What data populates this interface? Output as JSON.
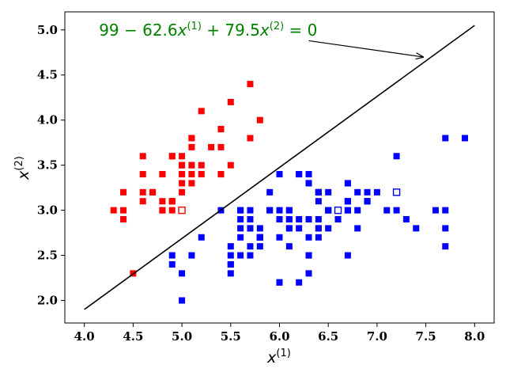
{
  "chart_data": {
    "type": "scatter",
    "xlabel": "x(1)",
    "ylabel": "x(2)",
    "xlim": [
      3.8,
      8.2
    ],
    "ylim": [
      1.75,
      5.2
    ],
    "xticks": [
      "4.0",
      "4.5",
      "5.0",
      "5.5",
      "6.0",
      "6.5",
      "7.0",
      "7.5",
      "8.0"
    ],
    "yticks": [
      "2.0",
      "2.5",
      "3.0",
      "3.5",
      "4.0",
      "4.5",
      "5.0"
    ],
    "grid": false,
    "series": [
      {
        "color": "#ff0000",
        "marker": "square",
        "points": [
          [
            5.1,
            3.5
          ],
          [
            4.9,
            3.0
          ],
          [
            4.7,
            3.2
          ],
          [
            4.6,
            3.1
          ],
          [
            5.0,
            3.6
          ],
          [
            5.4,
            3.9
          ],
          [
            4.6,
            3.4
          ],
          [
            5.0,
            3.4
          ],
          [
            4.4,
            2.9
          ],
          [
            4.9,
            3.1
          ],
          [
            5.4,
            3.7
          ],
          [
            4.8,
            3.4
          ],
          [
            4.8,
            3.0
          ],
          [
            4.3,
            3.0
          ],
          [
            5.8,
            4.0
          ],
          [
            5.7,
            4.4
          ],
          [
            5.4,
            3.9
          ],
          [
            5.1,
            3.5
          ],
          [
            5.7,
            3.8
          ],
          [
            5.1,
            3.8
          ],
          [
            5.4,
            3.4
          ],
          [
            5.1,
            3.7
          ],
          [
            4.6,
            3.6
          ],
          [
            5.1,
            3.3
          ],
          [
            4.8,
            3.4
          ],
          [
            5.0,
            3.0
          ],
          [
            5.0,
            3.4
          ],
          [
            5.2,
            3.5
          ],
          [
            5.2,
            3.4
          ],
          [
            4.7,
            3.2
          ],
          [
            4.8,
            3.1
          ],
          [
            5.4,
            3.4
          ],
          [
            5.2,
            4.1
          ],
          [
            5.5,
            4.2
          ],
          [
            4.9,
            3.1
          ],
          [
            5.0,
            3.2
          ],
          [
            5.5,
            3.5
          ],
          [
            4.9,
            3.6
          ],
          [
            4.4,
            3.0
          ],
          [
            5.1,
            3.4
          ],
          [
            5.0,
            3.5
          ],
          [
            4.5,
            2.3
          ],
          [
            4.4,
            3.2
          ],
          [
            5.0,
            3.5
          ],
          [
            5.1,
            3.8
          ],
          [
            4.8,
            3.0
          ],
          [
            5.1,
            3.8
          ],
          [
            4.6,
            3.2
          ],
          [
            5.3,
            3.7
          ],
          [
            5.0,
            3.3
          ],
          [
            4.9,
            3.6
          ],
          [
            4.9,
            3.1
          ]
        ]
      },
      {
        "color": "#0000ff",
        "marker": "square",
        "points": [
          [
            7.0,
            3.2
          ],
          [
            6.4,
            3.2
          ],
          [
            6.9,
            3.1
          ],
          [
            5.5,
            2.3
          ],
          [
            6.5,
            2.8
          ],
          [
            5.7,
            2.8
          ],
          [
            6.3,
            3.3
          ],
          [
            4.9,
            2.4
          ],
          [
            6.6,
            2.9
          ],
          [
            5.2,
            2.7
          ],
          [
            5.0,
            2.0
          ],
          [
            5.9,
            3.0
          ],
          [
            6.0,
            2.2
          ],
          [
            6.1,
            2.9
          ],
          [
            5.6,
            2.9
          ],
          [
            6.7,
            3.1
          ],
          [
            5.6,
            3.0
          ],
          [
            5.8,
            2.7
          ],
          [
            6.2,
            2.2
          ],
          [
            5.6,
            2.5
          ],
          [
            5.9,
            3.2
          ],
          [
            6.1,
            2.8
          ],
          [
            6.3,
            2.5
          ],
          [
            6.1,
            2.8
          ],
          [
            6.4,
            2.9
          ],
          [
            6.6,
            3.0
          ],
          [
            6.8,
            2.8
          ],
          [
            6.7,
            3.0
          ],
          [
            6.0,
            2.9
          ],
          [
            5.7,
            2.6
          ],
          [
            5.5,
            2.4
          ],
          [
            5.5,
            2.4
          ],
          [
            5.8,
            2.7
          ],
          [
            6.0,
            2.7
          ],
          [
            5.4,
            3.0
          ],
          [
            6.0,
            3.4
          ],
          [
            6.7,
            3.1
          ],
          [
            6.3,
            2.3
          ],
          [
            5.6,
            3.0
          ],
          [
            5.5,
            2.5
          ],
          [
            5.5,
            2.6
          ],
          [
            6.1,
            3.0
          ],
          [
            5.8,
            2.6
          ],
          [
            5.0,
            2.3
          ],
          [
            5.6,
            2.7
          ],
          [
            5.7,
            3.0
          ],
          [
            5.7,
            2.9
          ],
          [
            6.2,
            2.9
          ],
          [
            5.1,
            2.5
          ],
          [
            5.7,
            2.8
          ],
          [
            6.3,
            3.3
          ],
          [
            5.8,
            2.7
          ],
          [
            7.1,
            3.0
          ],
          [
            6.3,
            2.9
          ],
          [
            6.5,
            3.0
          ],
          [
            7.6,
            3.0
          ],
          [
            4.9,
            2.5
          ],
          [
            7.3,
            2.9
          ],
          [
            6.7,
            2.5
          ],
          [
            7.2,
            3.6
          ],
          [
            6.5,
            3.2
          ],
          [
            6.4,
            2.7
          ],
          [
            6.8,
            3.0
          ],
          [
            5.7,
            2.5
          ],
          [
            5.8,
            2.8
          ],
          [
            6.4,
            3.2
          ],
          [
            6.5,
            3.0
          ],
          [
            7.7,
            3.8
          ],
          [
            7.7,
            2.6
          ],
          [
            6.0,
            2.2
          ],
          [
            6.9,
            3.2
          ],
          [
            5.6,
            2.8
          ],
          [
            7.7,
            2.8
          ],
          [
            6.3,
            2.7
          ],
          [
            6.7,
            3.3
          ],
          [
            7.2,
            3.2
          ],
          [
            6.2,
            2.8
          ],
          [
            6.1,
            3.0
          ],
          [
            6.4,
            2.8
          ],
          [
            7.2,
            3.0
          ],
          [
            7.4,
            2.8
          ],
          [
            7.9,
            3.8
          ],
          [
            6.4,
            2.8
          ],
          [
            6.1,
            2.6
          ],
          [
            7.7,
            3.0
          ],
          [
            6.3,
            3.4
          ],
          [
            6.4,
            3.1
          ],
          [
            6.0,
            3.0
          ],
          [
            6.9,
            3.1
          ],
          [
            6.7,
            3.1
          ],
          [
            6.9,
            3.1
          ],
          [
            5.8,
            2.7
          ],
          [
            6.8,
            3.2
          ],
          [
            6.7,
            3.3
          ],
          [
            6.7,
            3.0
          ],
          [
            6.3,
            2.5
          ],
          [
            6.5,
            3.0
          ],
          [
            6.2,
            3.4
          ],
          [
            5.9,
            3.0
          ],
          [
            6.6,
            2.9
          ],
          [
            6.1,
            2.9
          ],
          [
            6.2,
            3.4
          ],
          [
            6.4,
            3.2
          ]
        ]
      },
      {
        "color": "#ff0000",
        "marker": "square-open",
        "points": [
          [
            5.0,
            3.0
          ]
        ]
      },
      {
        "color": "#0000ff",
        "marker": "square-open",
        "points": [
          [
            6.6,
            3.0
          ],
          [
            7.2,
            3.2
          ]
        ]
      }
    ],
    "decision_line": {
      "x": [
        4.0,
        8.0
      ],
      "y": [
        1.9,
        5.05
      ]
    },
    "annotation": {
      "text": "99 − 62.6x(1) + 79.5x(2) = 0",
      "main": "99 − 62.6",
      "x": "x",
      "sup1": "(1)",
      "mid": " + 79.5",
      "sup2": "(2)",
      "end": " = 0",
      "color": "#008000",
      "text_at": [
        4.15,
        5.0
      ],
      "arrow_from": [
        6.3,
        4.88
      ],
      "arrow_to": [
        7.47,
        4.7
      ]
    }
  }
}
